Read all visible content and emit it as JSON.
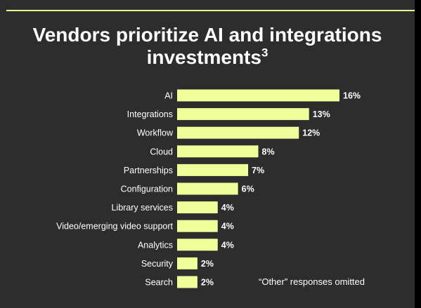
{
  "title": {
    "line1": "Vendors prioritize AI and integrations",
    "line2": "investments",
    "superscript": "3"
  },
  "note": "“Other” responses omitted",
  "colors": {
    "bar": "#efff9a",
    "background": "#2d2d2d",
    "accent_rule": "#e9ff8a",
    "text": "#ffffff"
  },
  "chart_data": {
    "type": "bar",
    "orientation": "horizontal",
    "categories": [
      "AI",
      "Integrations",
      "Workflow",
      "Cloud",
      "Partnerships",
      "Configuration",
      "Library services",
      "Video/emerging video support",
      "Analytics",
      "Security",
      "Search"
    ],
    "values": [
      16,
      13,
      12,
      8,
      7,
      6,
      4,
      4,
      4,
      2,
      2
    ],
    "value_labels": [
      "16%",
      "13%",
      "12%",
      "8%",
      "7%",
      "6%",
      "4%",
      "4%",
      "4%",
      "2%",
      "2%"
    ],
    "unit": "%",
    "title": "Vendors prioritize AI and integrations investments",
    "xlabel": "",
    "ylabel": "",
    "xlim": [
      0,
      16
    ],
    "grid": false,
    "legend": "none"
  }
}
